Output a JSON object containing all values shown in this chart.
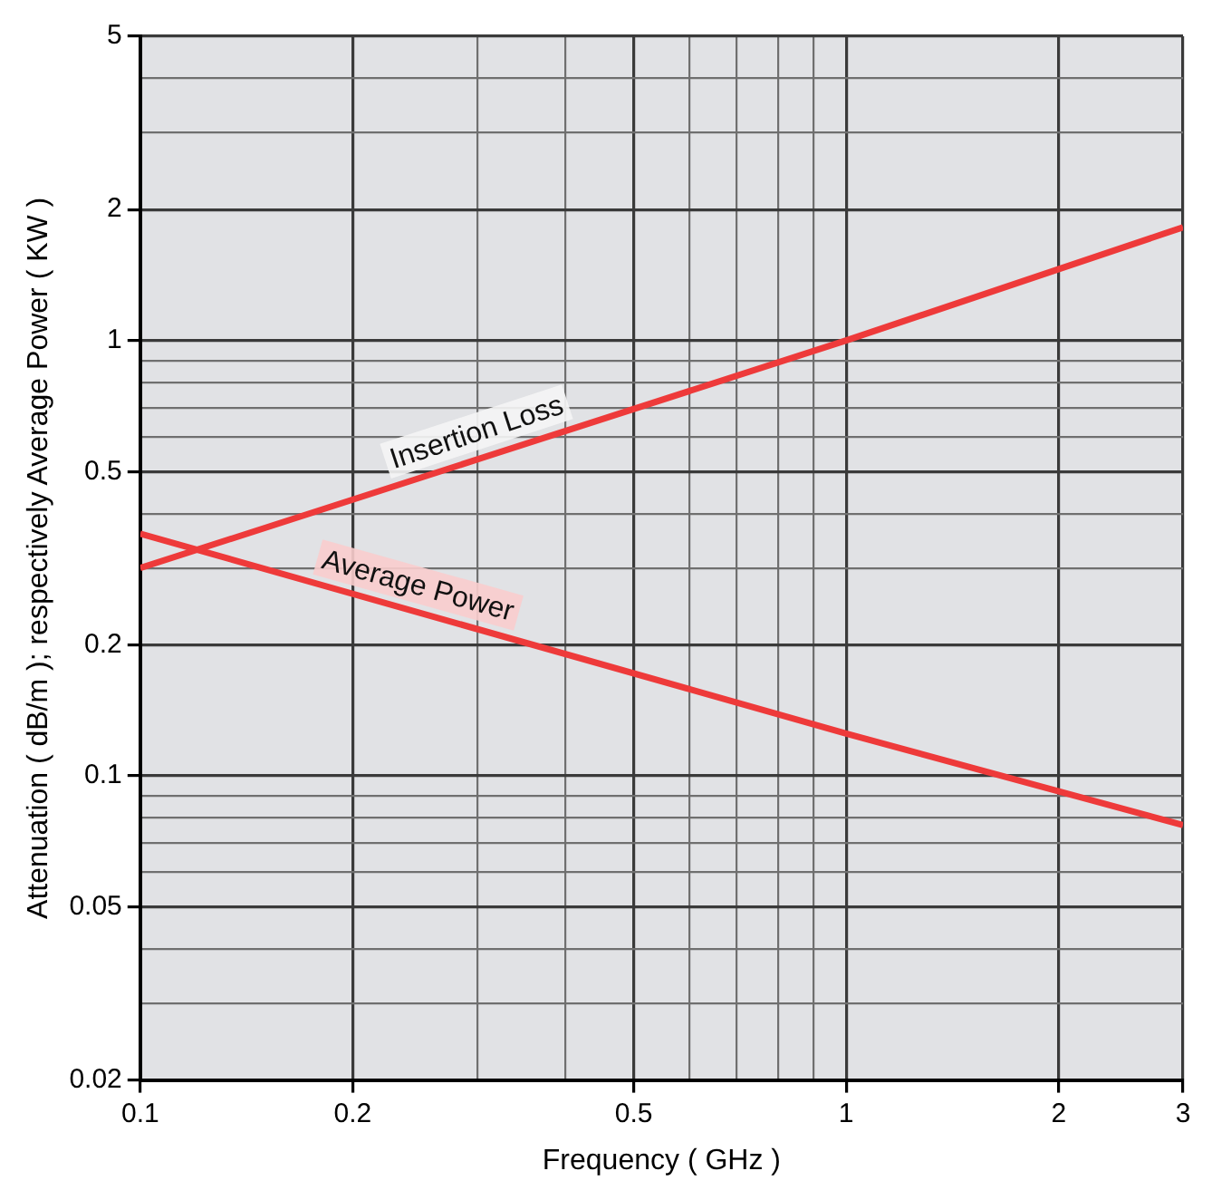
{
  "chart_data": {
    "type": "line",
    "xlabel": "Frequency ( GHz )",
    "ylabel": "Attenuation ( dB/m ); respectively Average Power ( KW )",
    "log": "xy",
    "grid": true,
    "legend": false,
    "marker": "none",
    "line_style": "solid",
    "xlim": [
      0.1,
      3
    ],
    "ylim": [
      0.02,
      5
    ],
    "xticks": [
      0.1,
      0.2,
      {
        "value": 0.3,
        "label": null
      },
      {
        "value": 0.4,
        "label": null
      },
      0.5,
      {
        "value": 0.6,
        "label": null
      },
      {
        "value": 0.7,
        "label": null
      },
      {
        "value": 0.8,
        "label": null
      },
      {
        "value": 0.9,
        "label": null
      },
      1,
      2,
      3
    ],
    "yticks": [
      0.02,
      {
        "value": 0.03,
        "label": null
      },
      {
        "value": 0.04,
        "label": null
      },
      0.05,
      {
        "value": 0.06,
        "label": null
      },
      {
        "value": 0.07,
        "label": null
      },
      {
        "value": 0.08,
        "label": null
      },
      {
        "value": 0.09,
        "label": null
      },
      0.1,
      0.2,
      {
        "value": 0.3,
        "label": null
      },
      {
        "value": 0.4,
        "label": null
      },
      0.5,
      {
        "value": 0.6,
        "label": null
      },
      {
        "value": 0.7,
        "label": null
      },
      {
        "value": 0.8,
        "label": null
      },
      {
        "value": 0.9,
        "label": null
      },
      1,
      2,
      {
        "value": 3,
        "label": null
      },
      {
        "value": 4,
        "label": null
      },
      5
    ],
    "series": [
      {
        "name": "Insertion Loss",
        "color": "#ee3a3a",
        "x": [
          0.1,
          1,
          3
        ],
        "values": [
          0.3,
          1.0,
          1.82
        ]
      },
      {
        "name": "Average Power",
        "color": "#ee3a3a",
        "x": [
          0.1,
          1,
          3
        ],
        "values": [
          0.36,
          0.125,
          0.077
        ]
      }
    ]
  }
}
